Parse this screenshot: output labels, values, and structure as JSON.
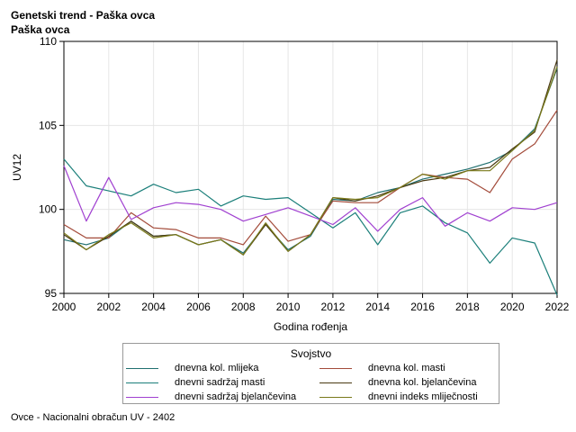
{
  "header": {
    "title": "Genetski trend - Paška ovca",
    "subtitle": "Paška ovca"
  },
  "footnote": "Ovce - Nacionalni obračun UV - 2402",
  "colors": {
    "background": "#ffffff",
    "grid": "#e6e6e6",
    "axis": "#000000"
  },
  "chart_data": {
    "type": "line",
    "title": "Genetski trend - Paška ovca",
    "subtitle": "Paška ovca",
    "xlabel": "Godina rođenja",
    "ylabel": "UV12",
    "xlim": [
      2000,
      2022
    ],
    "ylim": [
      95,
      110
    ],
    "x_ticks": [
      "2000",
      "2002",
      "2004",
      "2006",
      "2008",
      "2010",
      "2012",
      "2014",
      "2016",
      "2018",
      "2020",
      "2022"
    ],
    "y_ticks": [
      "95",
      "100",
      "105",
      "110"
    ],
    "grid": true,
    "legend_title": "Svojstvo",
    "legend_position": "bottom",
    "x": [
      2000,
      2001,
      2002,
      2003,
      2004,
      2005,
      2006,
      2007,
      2008,
      2009,
      2010,
      2011,
      2012,
      2013,
      2014,
      2015,
      2016,
      2017,
      2018,
      2019,
      2020,
      2021,
      2022
    ],
    "series": [
      {
        "name": "dnevna kol. mlijeka",
        "color": "#1f6f6f",
        "values": [
          98.2,
          97.9,
          98.3,
          99.3,
          98.4,
          98.5,
          97.9,
          98.2,
          97.4,
          99.1,
          97.6,
          98.4,
          100.6,
          100.5,
          101.0,
          101.3,
          101.8,
          102.1,
          102.4,
          102.8,
          103.5,
          104.8,
          108.4
        ]
      },
      {
        "name": "dnevna kol. masti",
        "color": "#a34b3a",
        "values": [
          99.1,
          98.3,
          98.3,
          99.8,
          98.9,
          98.8,
          98.3,
          98.3,
          97.9,
          99.6,
          98.1,
          98.5,
          100.5,
          100.4,
          100.4,
          101.3,
          102.1,
          101.9,
          101.8,
          101.0,
          103.0,
          103.9,
          105.9
        ]
      },
      {
        "name": "dnevni sadržaj masti",
        "color": "#1b7f7a",
        "values": [
          103.0,
          101.4,
          101.1,
          100.8,
          101.5,
          101.0,
          101.2,
          100.2,
          100.8,
          100.6,
          100.7,
          99.8,
          98.9,
          99.8,
          97.9,
          99.8,
          100.2,
          99.2,
          98.6,
          96.8,
          98.3,
          98.0,
          94.9
        ]
      },
      {
        "name": "dnevna kol. bjelančevina",
        "color": "#4a3a12",
        "values": [
          98.5,
          97.6,
          98.4,
          99.3,
          98.4,
          98.5,
          97.9,
          98.2,
          97.3,
          99.1,
          97.5,
          98.5,
          100.7,
          100.5,
          100.8,
          101.3,
          101.7,
          101.9,
          102.3,
          102.5,
          103.6,
          104.6,
          108.9
        ]
      },
      {
        "name": "dnevni sadržaj bjelančevina",
        "color": "#a040d0",
        "values": [
          102.6,
          99.3,
          101.9,
          99.4,
          100.1,
          100.4,
          100.3,
          100.0,
          99.3,
          99.7,
          100.1,
          99.6,
          99.1,
          100.1,
          98.7,
          100.0,
          100.7,
          99.0,
          99.8,
          99.3,
          100.1,
          100.0,
          100.4
        ]
      },
      {
        "name": "dnevni indeks mliječnosti",
        "color": "#7a7a1a",
        "values": [
          98.6,
          97.6,
          98.5,
          99.2,
          98.3,
          98.5,
          97.9,
          98.2,
          97.3,
          99.2,
          97.5,
          98.5,
          100.7,
          100.6,
          100.7,
          101.3,
          102.1,
          101.8,
          102.3,
          102.3,
          103.5,
          104.7,
          108.5
        ]
      }
    ]
  }
}
